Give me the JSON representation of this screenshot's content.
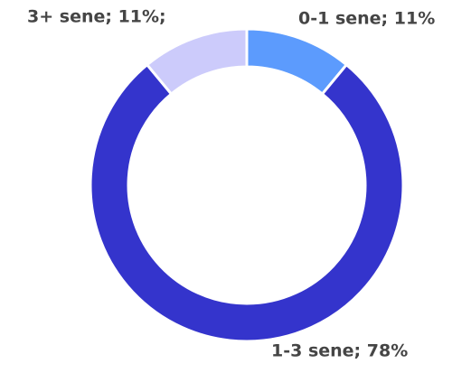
{
  "chart_data": {
    "type": "donut",
    "values": [
      11,
      78,
      11
    ],
    "value_labels": [
      "0-1 sene; 11%",
      "1-3 sene; 78%",
      "3+ sene; 11%;"
    ],
    "colors": [
      "#5c9bfd",
      "#3434cc",
      "#cccbfb"
    ]
  }
}
